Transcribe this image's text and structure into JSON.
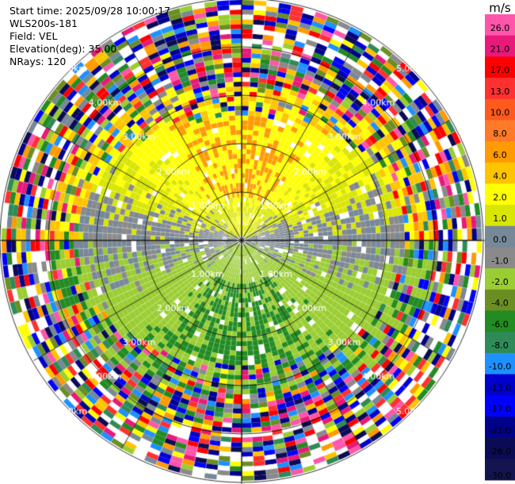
{
  "header": {
    "start_time": "Start time: 2025/09/28 10:00:17",
    "instrument": "WLS200s-181",
    "field": "Field: VEL",
    "elevation": "Elevation(deg): 35.00",
    "nrays": "NRays: 120"
  },
  "range_rings": [
    "1.00km",
    "2.00km",
    "3.00km",
    "4.00km",
    "5.00km"
  ],
  "colorbar": {
    "unit": "m/s",
    "ticks": [
      "26.0",
      "21.0",
      "17.0",
      "13.0",
      "10.0",
      "8.0",
      "6.0",
      "4.0",
      "2.0",
      "1.0",
      "0.0",
      "-1.0",
      "-2.0",
      "-4.0",
      "-6.0",
      "-8.0",
      "-10.0",
      "-13.0",
      "-17.0",
      "-21.0",
      "-26.0",
      "-30.0"
    ],
    "colors": [
      "#ff55aa",
      "#e8197a",
      "#ff0000",
      "#ff3030",
      "#ff5a1e",
      "#ff7a28",
      "#ff9a00",
      "#ffc400",
      "#ffff00",
      "#d8e600",
      "#778899",
      "#8a8a8a",
      "#9acd32",
      "#6b8e23",
      "#228b22",
      "#2e8b57",
      "#1e90ff",
      "#0000cd",
      "#0000ff",
      "#00008b",
      "#0b0b55",
      "#141450"
    ]
  }
}
